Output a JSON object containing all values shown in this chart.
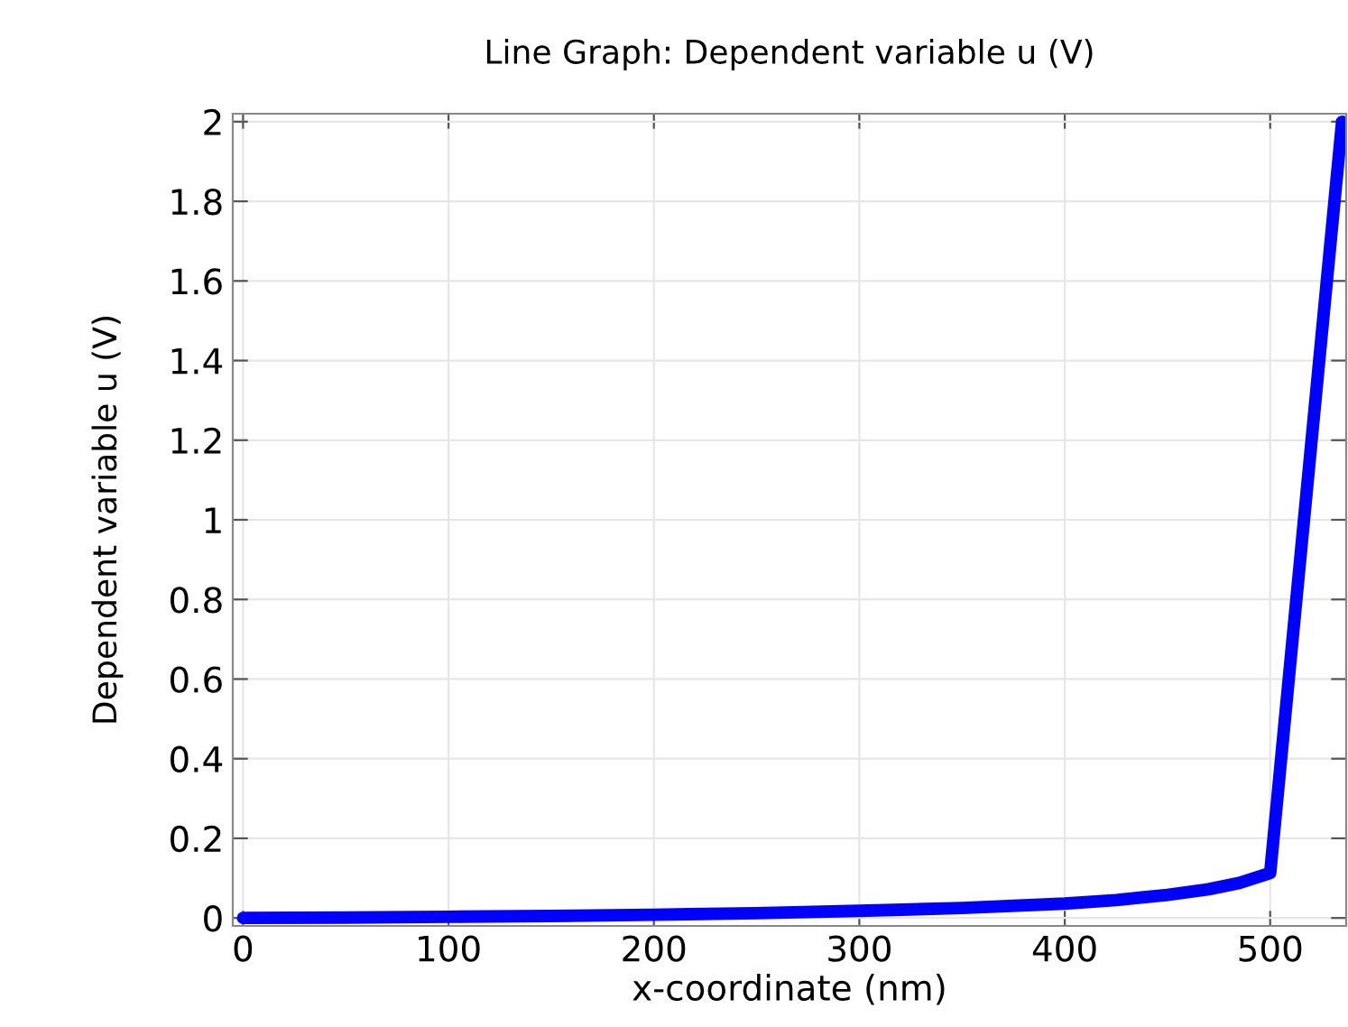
{
  "chart_data": {
    "type": "line",
    "title": "Line Graph: Dependent variable u (V)",
    "xlabel": "x-coordinate (nm)",
    "ylabel": "Dependent variable u (V)",
    "series": [
      {
        "color": "#0000ff",
        "x": [
          0,
          50,
          100,
          150,
          200,
          250,
          300,
          350,
          400,
          425,
          450,
          470,
          485,
          500,
          535
        ],
        "values": [
          0,
          0.001,
          0.003,
          0.005,
          0.008,
          0.012,
          0.018,
          0.025,
          0.036,
          0.045,
          0.058,
          0.072,
          0.088,
          0.113,
          2
        ]
      }
    ],
    "xlim": [
      -5,
      537
    ],
    "ylim": [
      -0.02,
      2.02
    ],
    "xticks": [
      0,
      100,
      200,
      300,
      400,
      500
    ],
    "yticks": [
      0,
      0.2,
      0.4,
      0.6,
      0.8,
      1,
      1.2,
      1.4,
      1.6,
      1.8,
      2
    ],
    "grid": true,
    "marker": "none",
    "line_style": "solid"
  }
}
